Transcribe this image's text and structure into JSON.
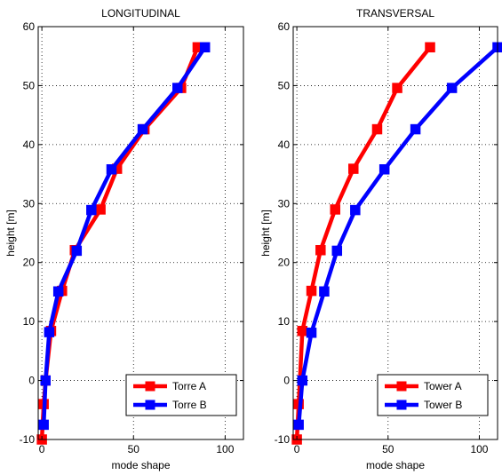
{
  "chart_data": [
    {
      "type": "line",
      "title": "LONGITUDINAL",
      "xlabel": "mode shape",
      "ylabel": "height [m]",
      "xlim": [
        -2,
        110
      ],
      "ylim": [
        -10,
        60
      ],
      "xticks": [
        0,
        50,
        100
      ],
      "yticks": [
        -10,
        0,
        10,
        20,
        30,
        40,
        50,
        60
      ],
      "grid": true,
      "legend_position": "bottom-right",
      "series": [
        {
          "name": "Torre A",
          "color": "#ff0000",
          "marker": "square",
          "x": [
            0,
            1,
            2,
            5,
            11,
            18,
            32,
            41,
            56,
            76,
            85
          ],
          "y": [
            -10,
            -4,
            0,
            8.4,
            15.2,
            22.1,
            29,
            35.9,
            42.6,
            49.6,
            56.5
          ]
        },
        {
          "name": "Torre B",
          "color": "#0000ff",
          "marker": "square",
          "x": [
            1,
            2,
            4,
            9,
            19,
            27,
            38,
            55,
            74,
            89
          ],
          "y": [
            -7.5,
            0,
            8.2,
            15.1,
            22,
            28.9,
            35.8,
            42.6,
            49.6,
            56.5
          ]
        }
      ]
    },
    {
      "type": "line",
      "title": "TRANSVERSAL",
      "xlabel": "mode shape",
      "ylabel": "height [m]",
      "xlim": [
        -2,
        110
      ],
      "ylim": [
        -10,
        60
      ],
      "xticks": [
        0,
        50,
        100
      ],
      "yticks": [
        -10,
        0,
        10,
        20,
        30,
        40,
        50,
        60
      ],
      "grid": true,
      "legend_position": "bottom-right",
      "series": [
        {
          "name": "Tower A",
          "color": "#ff0000",
          "marker": "square",
          "x": [
            0,
            1,
            3,
            8,
            13,
            21,
            31,
            44,
            55,
            73
          ],
          "y": [
            -10,
            -4,
            8.4,
            15.2,
            22.1,
            29,
            35.9,
            42.6,
            49.6,
            56.5
          ]
        },
        {
          "name": "Tower B",
          "color": "#0000ff",
          "marker": "square",
          "x": [
            1,
            3,
            8,
            15,
            22,
            32,
            48,
            65,
            85,
            110
          ],
          "y": [
            -7.5,
            0,
            8.1,
            15.1,
            22,
            28.9,
            35.8,
            42.6,
            49.6,
            56.5
          ]
        }
      ]
    }
  ]
}
